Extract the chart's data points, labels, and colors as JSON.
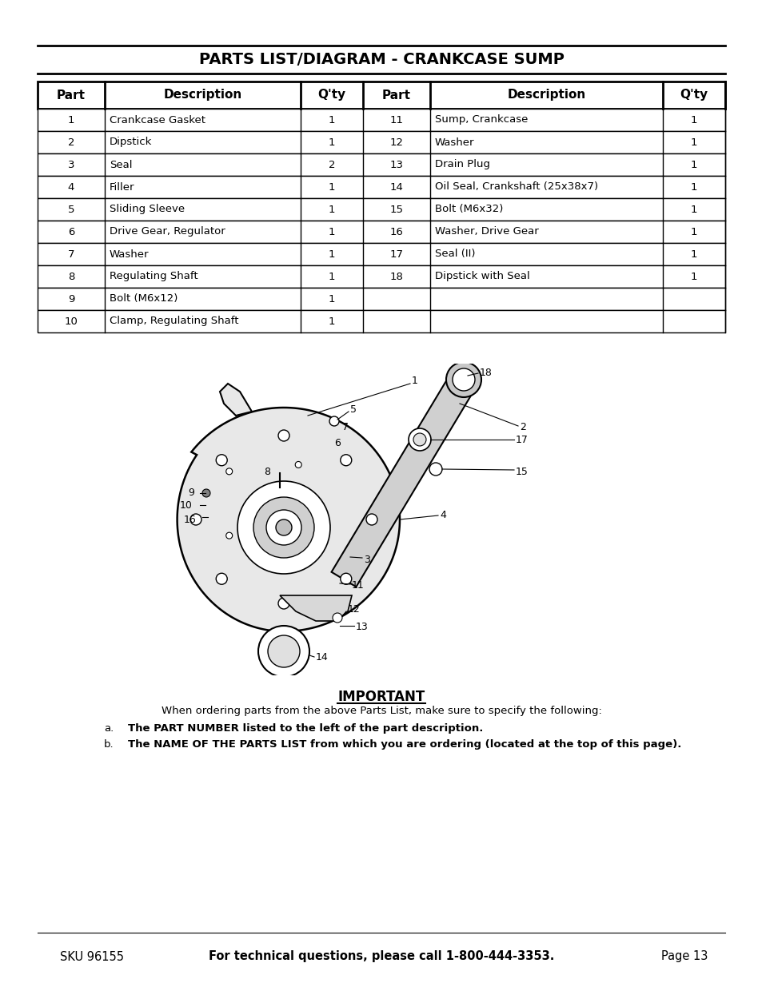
{
  "title": "PARTS LIST/DIAGRAM - CRANKCASE SUMP",
  "bg_color": "#ffffff",
  "table_headers": [
    "Part",
    "Description",
    "Q'ty",
    "Part",
    "Description",
    "Q'ty"
  ],
  "rows": [
    [
      "1",
      "Crankcase Gasket",
      "1",
      "11",
      "Sump, Crankcase",
      "1"
    ],
    [
      "2",
      "Dipstick",
      "1",
      "12",
      "Washer",
      "1"
    ],
    [
      "3",
      "Seal",
      "2",
      "13",
      "Drain Plug",
      "1"
    ],
    [
      "4",
      "Filler",
      "1",
      "14",
      "Oil Seal, Crankshaft (25x38x7)",
      "1"
    ],
    [
      "5",
      "Sliding Sleeve",
      "1",
      "15",
      "Bolt (M6x32)",
      "1"
    ],
    [
      "6",
      "Drive Gear, Regulator",
      "1",
      "16",
      "Washer, Drive Gear",
      "1"
    ],
    [
      "7",
      "Washer",
      "1",
      "17",
      "Seal (II)",
      "1"
    ],
    [
      "8",
      "Regulating Shaft",
      "1",
      "18",
      "Dipstick with Seal",
      "1"
    ],
    [
      "9",
      "Bolt (M6x12)",
      "1",
      "",
      "",
      ""
    ],
    [
      "10",
      "Clamp, Regulating Shaft",
      "1",
      "",
      "",
      ""
    ]
  ],
  "important_title": "IMPORTANT",
  "important_line0": "When ordering parts from the above Parts List, make sure to specify the following:",
  "important_line1a_prefix": "a.",
  "important_line1a_bold": "The PART NUMBER listed to the left of the part description.",
  "important_line1b_prefix": "b.",
  "important_line1b_bold": "The NAME OF THE PARTS LIST from which you are ordering (located at the top of this page).",
  "footer_left": "SKU 96155",
  "footer_center": "For technical questions, please call 1-800-444-3353.",
  "footer_right": "Page 13"
}
